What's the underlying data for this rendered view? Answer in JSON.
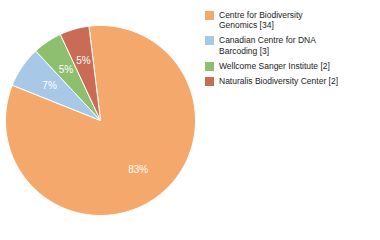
{
  "chart_data": {
    "type": "pie",
    "categories": [
      "Centre for Biodiversity\nGenomics [34]",
      "Canadian Centre for DNA\nBarcoding [3]",
      "Wellcome Sanger Institute [2]",
      "Naturalis Biodiversity Center [2]"
    ],
    "values": [
      83,
      7,
      5,
      5
    ],
    "value_labels": [
      "83%",
      "7%",
      "5%",
      "5%"
    ],
    "colors": [
      "#F5A86B",
      "#A8C8E8",
      "#8DBF6E",
      "#C96B55"
    ],
    "data_labels": true,
    "legend": "right"
  }
}
